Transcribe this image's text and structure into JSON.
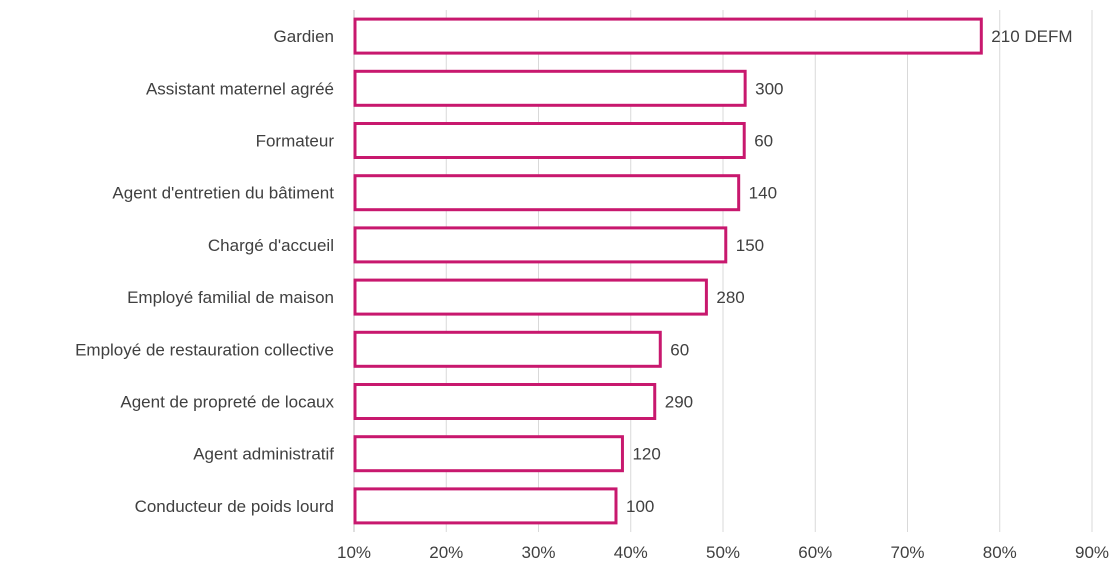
{
  "chart_data": {
    "type": "bar",
    "orientation": "horizontal",
    "categories": [
      "Gardien",
      "Assistant maternel agréé",
      "Formateur",
      "Agent d'entretien du bâtiment",
      "Chargé d'accueil",
      "Employé familial de maison",
      "Employé de restauration collective",
      "Agent de propreté de locaux",
      "Agent administratif",
      "Conducteur de poids lourd"
    ],
    "values": [
      78,
      52.4,
      52.3,
      51.7,
      50.3,
      48.2,
      43.2,
      42.6,
      39.1,
      38.4
    ],
    "data_labels": [
      "210 DEFM",
      "300",
      "60",
      "140",
      "150",
      "280",
      "60",
      "290",
      "120",
      "100"
    ],
    "xlim": [
      10,
      90
    ],
    "x_ticks": [
      10,
      20,
      30,
      40,
      50,
      60,
      70,
      80,
      90
    ],
    "x_tick_labels": [
      "10%",
      "20%",
      "30%",
      "40%",
      "50%",
      "60%",
      "70%",
      "80%",
      "90%"
    ],
    "grid": true,
    "bar_color": "#c8186e",
    "title": "",
    "xlabel": "",
    "ylabel": ""
  }
}
